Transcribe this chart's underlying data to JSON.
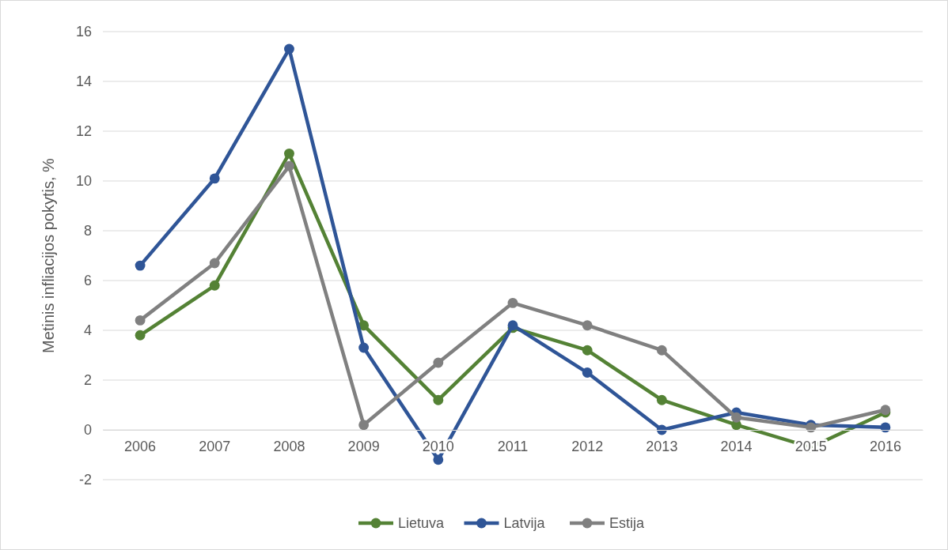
{
  "chart_data": {
    "type": "line",
    "ylabel": "Metinis infliacijos pokytis, %",
    "categories": [
      "2006",
      "2007",
      "2008",
      "2009",
      "2010",
      "2011",
      "2012",
      "2013",
      "2014",
      "2015",
      "2016"
    ],
    "series": [
      {
        "name": "Lietuva",
        "color": "#548235",
        "values": [
          3.8,
          5.8,
          11.1,
          4.2,
          1.2,
          4.1,
          3.2,
          1.2,
          0.2,
          -0.7,
          0.7
        ]
      },
      {
        "name": "Latvija",
        "color": "#2f5597",
        "values": [
          6.6,
          10.1,
          15.3,
          3.3,
          -1.2,
          4.2,
          2.3,
          0.0,
          0.7,
          0.2,
          0.1
        ]
      },
      {
        "name": "Estija",
        "color": "#808080",
        "values": [
          4.4,
          6.7,
          10.6,
          0.2,
          2.7,
          5.1,
          4.2,
          3.2,
          0.5,
          0.1,
          0.8
        ]
      }
    ],
    "ylim": [
      -2,
      16
    ],
    "yticks": [
      -2,
      0,
      2,
      4,
      6,
      8,
      10,
      12,
      14,
      16
    ],
    "grid": "y",
    "legend": "bottom",
    "marker": "circle",
    "line_style": "solid"
  }
}
